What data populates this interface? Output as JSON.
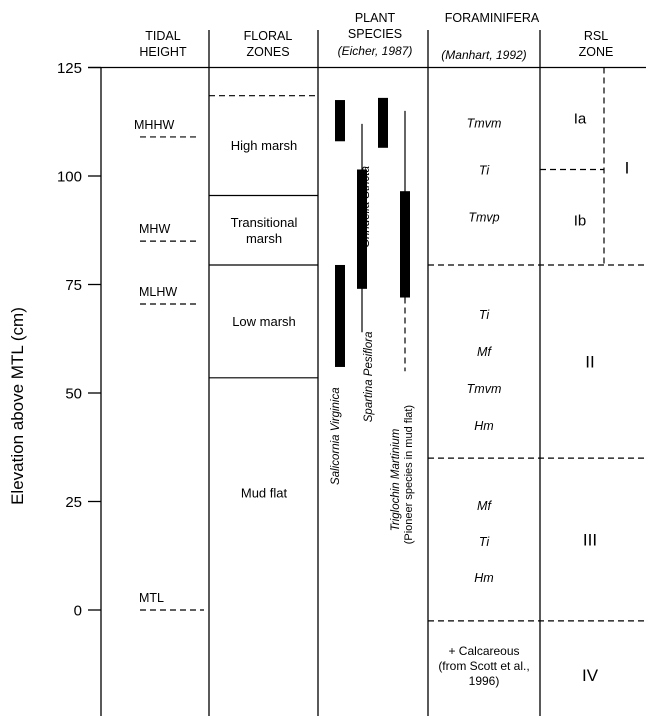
{
  "headers": {
    "tidal_height": [
      "TIDAL",
      "HEIGHT"
    ],
    "floral_zones": [
      "FLORAL",
      "ZONES"
    ],
    "plant_species": [
      "PLANT",
      "SPECIES",
      "(Eicher, 1987)"
    ],
    "foraminifera": [
      "FORAMINIFERA",
      "(Manhart, 1992)"
    ],
    "rsl_zone": [
      "RSL",
      "ZONE"
    ]
  },
  "y_axis": {
    "label": "Elevation above MTL (cm)",
    "ticks": [
      "125",
      "100",
      "75",
      "50",
      "25",
      "0"
    ],
    "range": [
      -30,
      125
    ]
  },
  "tidal_levels": [
    {
      "label": "MHHW",
      "elevation": 109
    },
    {
      "label": "MHW",
      "elevation": 85
    },
    {
      "label": "MLHW",
      "elevation": 70.5
    },
    {
      "label": "MTL",
      "elevation": 0
    }
  ],
  "floral_zones": [
    {
      "label": [
        "High marsh"
      ],
      "top": 118.5,
      "bottom": 95.5
    },
    {
      "label": [
        "Transitional",
        "marsh"
      ],
      "top": 95.5,
      "bottom": 79.5
    },
    {
      "label": [
        "Low marsh"
      ],
      "top": 79.5,
      "bottom": 53.5
    },
    {
      "label": [
        "Mud flat"
      ],
      "top": 53.5,
      "bottom": -30
    }
  ],
  "plant_species": [
    {
      "name": "Salicornia Virginica",
      "note": "",
      "line": [
        null,
        null
      ],
      "bars": [
        [
          108,
          117.5
        ],
        [
          56,
          79.5
        ]
      ]
    },
    {
      "name": "Spartina Pesiflora",
      "note": "",
      "line": [
        64,
        112
      ],
      "bars": [
        [
          74,
          101.5
        ]
      ]
    },
    {
      "name": "Grindelia Stricta",
      "note": "",
      "line": null,
      "bars": [
        [
          106.5,
          118
        ]
      ]
    },
    {
      "name": "Triglochin Martinium",
      "note": "(Pioneer species in mud flat)",
      "line": [
        55,
        115
      ],
      "bars": [
        [
          72,
          96.5
        ]
      ],
      "dashed_below": true
    }
  ],
  "foraminifera_zones": [
    {
      "top": 125,
      "bottom": 79.5,
      "taxa": [
        "Tmvm",
        "Ti",
        "Tmvp"
      ]
    },
    {
      "top": 79.5,
      "bottom": 35,
      "taxa": [
        "Ti",
        "Mf",
        "Tmvm",
        "Hm"
      ]
    },
    {
      "top": 35,
      "bottom": -2.5,
      "taxa": [
        "Mf",
        "Ti",
        "Hm"
      ]
    },
    {
      "top": -2.5,
      "bottom": -30,
      "taxa": [],
      "note": [
        "+ Calcareous",
        "(from Scott et al.,",
        "1996)"
      ]
    }
  ],
  "rsl_zones": [
    {
      "label": "I",
      "sub_labels": [
        "Ia",
        "Ib"
      ],
      "top": 125,
      "bottom": 79.5
    },
    {
      "label": "II",
      "top": 79.5,
      "bottom": 35
    },
    {
      "label": "III",
      "top": 35,
      "bottom": -2.5
    },
    {
      "label": "IV",
      "top": -2.5,
      "bottom": -30
    }
  ]
}
